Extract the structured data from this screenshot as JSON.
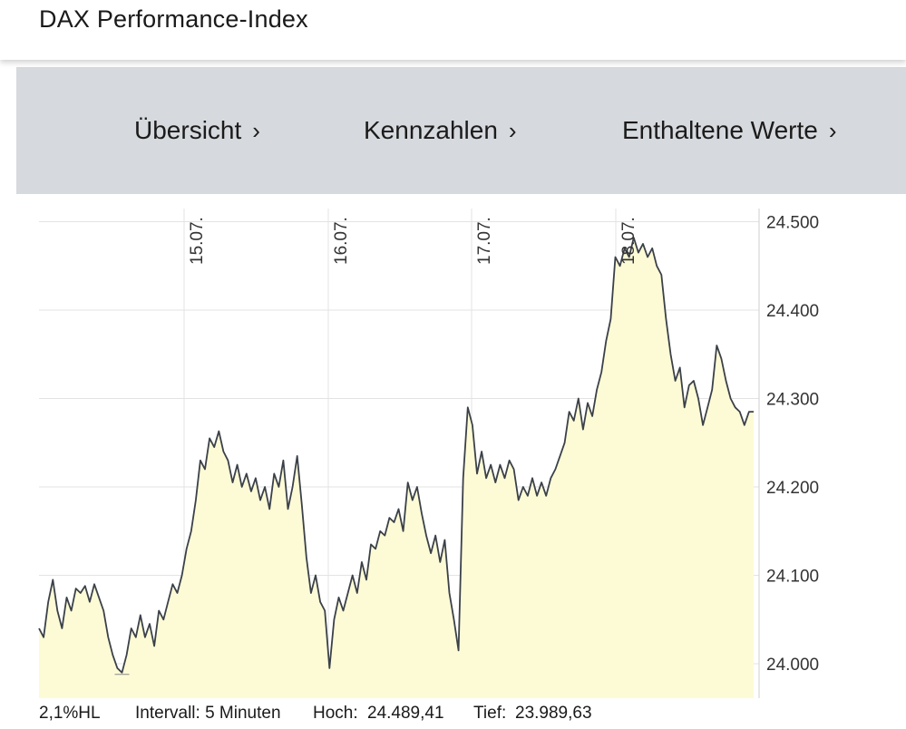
{
  "header": {
    "title": "DAX Performance-Index"
  },
  "nav": {
    "items": [
      {
        "label": "Übersicht"
      },
      {
        "label": "Kennzahlen"
      },
      {
        "label": "Enthaltene Werte"
      }
    ],
    "chevron": "chevron-right-icon"
  },
  "chart_data": {
    "type": "line",
    "fill": "area",
    "colors": {
      "line": "#3b4148",
      "fill": "#fdfbd6",
      "grid": "#e3e3e3"
    },
    "ylim": [
      23960,
      24510
    ],
    "y_ticks": [
      24000,
      24100,
      24200,
      24300,
      24400,
      24500
    ],
    "y_tick_labels": [
      "24.000",
      "24.100",
      "24.200",
      "24.300",
      "24.400",
      "24.500"
    ],
    "day_labels": [
      "15.07.",
      "16.07.",
      "17.07.",
      "18.07."
    ],
    "series": [
      {
        "values": [
          24040,
          24030,
          24070,
          24095,
          24060,
          24040,
          24075,
          24060,
          24085,
          24080,
          24088,
          24070,
          24090,
          24075,
          24060,
          24030,
          24010,
          23995,
          23990,
          24010,
          24040,
          24030,
          24055,
          24030,
          24045,
          24020,
          24060,
          24050,
          24070,
          24090,
          24080,
          24100,
          24130,
          24150,
          24185,
          24230,
          24220,
          24255,
          24245,
          24263,
          24240,
          24230,
          24205,
          24225,
          24200,
          24215,
          24195,
          24210,
          24185,
          24200,
          24175,
          24215,
          24200,
          24230,
          24175,
          24200,
          24235,
          24180,
          24120,
          24080,
          24100,
          24070,
          24060,
          23995,
          24050,
          24075,
          24060,
          24080,
          24100,
          24080,
          24115,
          24095,
          24135,
          24130,
          24150,
          24145,
          24165,
          24160,
          24175,
          24150,
          24205,
          24185,
          24200,
          24170,
          24145,
          24125,
          24145,
          24115,
          24140,
          24080,
          24050,
          24015,
          24210,
          24290,
          24270,
          24215,
          24240,
          24210,
          24225,
          24205,
          24225,
          24210,
          24230,
          24220,
          24185,
          24200,
          24190,
          24210,
          24190,
          24205,
          24190,
          24210,
          24220,
          24235,
          24250,
          24285,
          24275,
          24300,
          24265,
          24295,
          24280,
          24310,
          24330,
          24365,
          24390,
          24460,
          24450,
          24470,
          24460,
          24482,
          24465,
          24475,
          24460,
          24470,
          24450,
          24440,
          24390,
          24350,
          24320,
          24335,
          24290,
          24315,
          24320,
          24300,
          24270,
          24290,
          24310,
          24360,
          24345,
          24320,
          24300,
          24290,
          24285,
          24270,
          24285,
          24285
        ]
      }
    ]
  },
  "footer": {
    "mode": "2,1%HL",
    "interval": "Intervall: 5 Minuten",
    "high_label": "Hoch:",
    "high_value": "24.489,41",
    "low_label": "Tief:",
    "low_value": "23.989,63"
  }
}
